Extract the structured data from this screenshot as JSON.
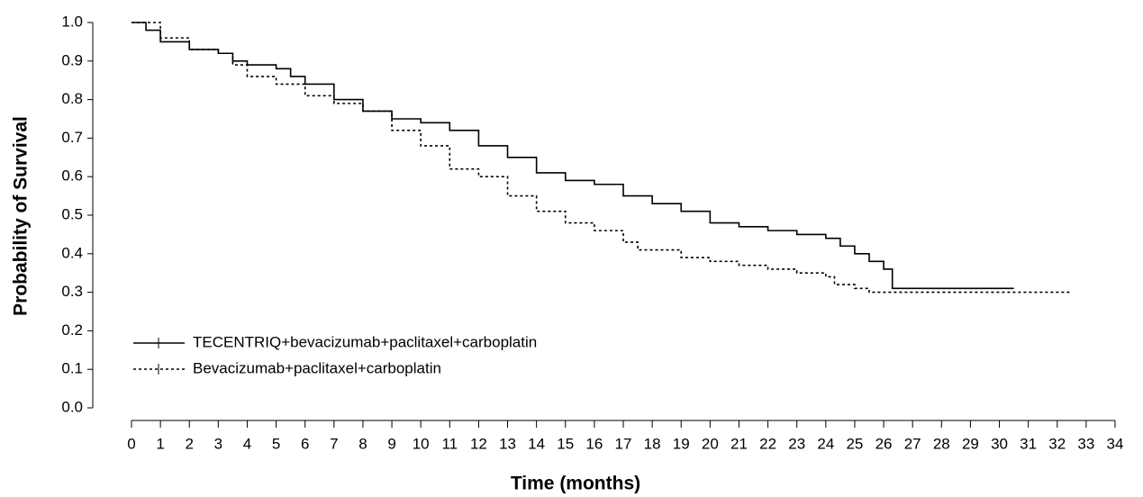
{
  "chart_data": {
    "type": "step",
    "xlabel": "Time (months)",
    "ylabel": "Probability of Survival",
    "xlim": [
      0,
      34
    ],
    "xticks": [
      0,
      1,
      2,
      3,
      4,
      5,
      6,
      7,
      8,
      9,
      10,
      11,
      12,
      13,
      14,
      15,
      16,
      17,
      18,
      19,
      20,
      21,
      22,
      23,
      24,
      25,
      26,
      27,
      28,
      29,
      30,
      31,
      32,
      33,
      34
    ],
    "ylim": [
      0,
      1
    ],
    "yticks": [
      {
        "value": 0,
        "label": "0.0"
      },
      0.1,
      0.2,
      0.3,
      0.4,
      0.5,
      0.6,
      0.7,
      0.8,
      0.9,
      {
        "value": 1,
        "label": "1.0"
      }
    ],
    "legend": "lower left",
    "series": [
      {
        "name": "TECENTRIQ+bevacizumab+paclitaxel+carboplatin",
        "color": "#000000",
        "line_style": "solid",
        "x": [
          0,
          0.5,
          1,
          2,
          3,
          3.5,
          4,
          5,
          5.5,
          6,
          7,
          8,
          9,
          10,
          11,
          12,
          13,
          14,
          15,
          16,
          17,
          18,
          19,
          20,
          21,
          22,
          23,
          24,
          24.5,
          25,
          25.5,
          26,
          26.3,
          30.5
        ],
        "values": [
          1.0,
          0.98,
          0.95,
          0.93,
          0.92,
          0.9,
          0.89,
          0.88,
          0.86,
          0.84,
          0.8,
          0.77,
          0.75,
          0.74,
          0.72,
          0.68,
          0.65,
          0.61,
          0.59,
          0.58,
          0.55,
          0.53,
          0.51,
          0.48,
          0.47,
          0.46,
          0.45,
          0.44,
          0.42,
          0.4,
          0.38,
          0.36,
          0.31,
          0.31
        ]
      },
      {
        "name": "Bevacizumab+paclitaxel+carboplatin",
        "color": "#000000",
        "line_style": "dotted",
        "x": [
          0,
          1,
          2,
          3,
          3.5,
          4,
          5,
          6,
          7,
          8,
          9,
          10,
          11,
          12,
          13,
          14,
          15,
          16,
          17,
          17.5,
          18,
          19,
          20,
          21,
          22,
          23,
          24,
          24.3,
          25,
          25.5,
          32.5
        ],
        "values": [
          1.0,
          0.96,
          0.93,
          0.92,
          0.89,
          0.86,
          0.84,
          0.81,
          0.79,
          0.77,
          0.72,
          0.68,
          0.62,
          0.6,
          0.55,
          0.51,
          0.48,
          0.46,
          0.43,
          0.41,
          0.41,
          0.39,
          0.38,
          0.37,
          0.36,
          0.35,
          0.34,
          0.32,
          0.31,
          0.3,
          0.3
        ]
      }
    ]
  }
}
